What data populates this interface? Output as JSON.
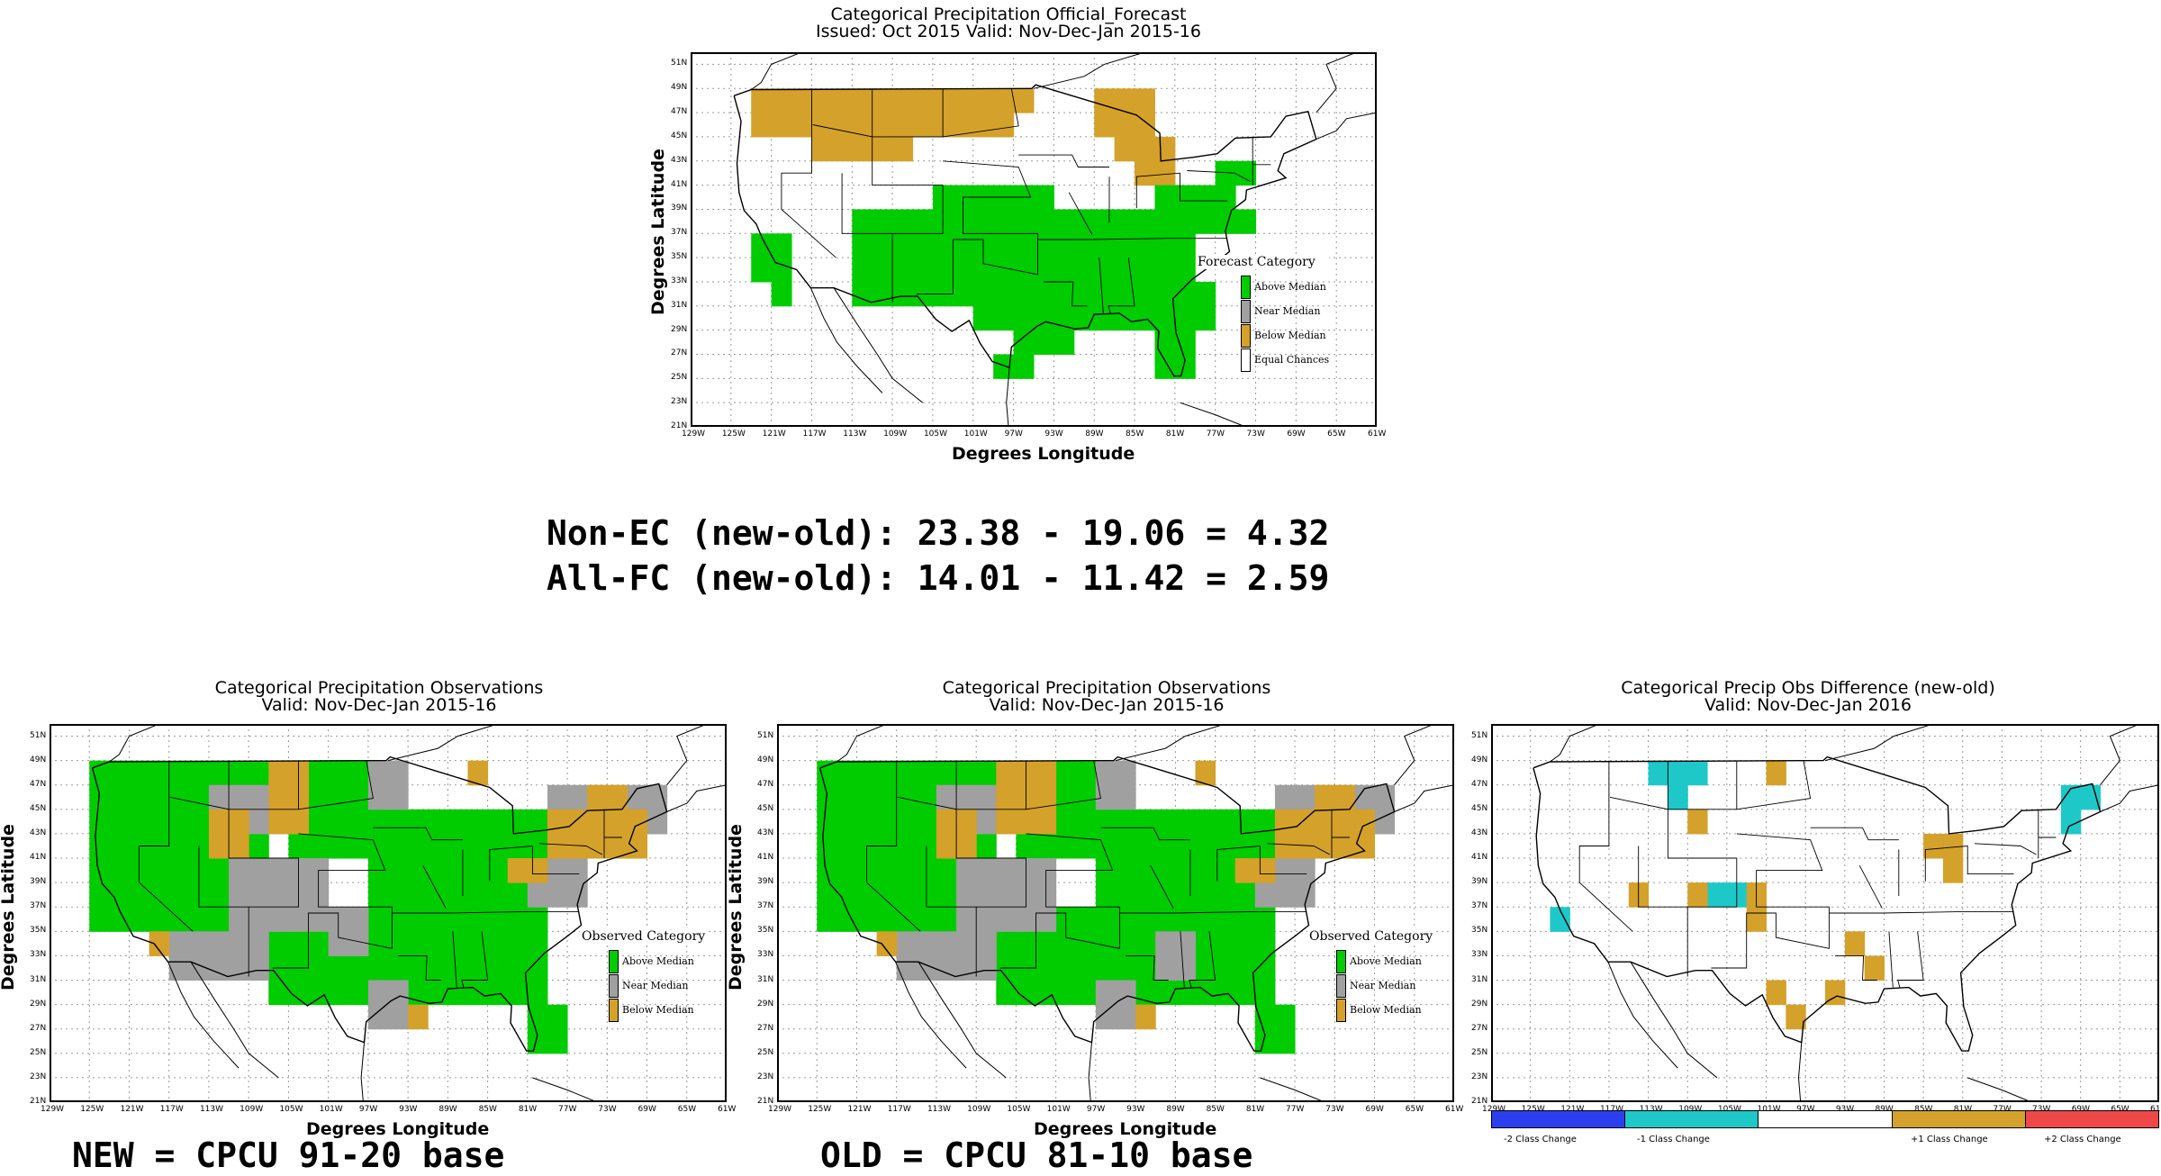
{
  "top_map": {
    "title_line1": "Categorical Precipitation Official_Forecast",
    "title_line2": "Issued: Oct 2015 Valid: Nov-Dec-Jan 2015-16",
    "legend": {
      "title": "Forecast Category",
      "items": [
        {
          "label": "Above Median",
          "color": "#00cc00"
        },
        {
          "label": "Near Median",
          "color": "#a0a0a0"
        },
        {
          "label": "Below Median",
          "color": "#d4a12a"
        },
        {
          "label": "Equal Chances",
          "color": "#ffffff"
        }
      ]
    },
    "ylabel": "Degrees Latitude",
    "xlabel": "Degrees Longitude"
  },
  "scores": {
    "non_ec": "Non-EC (new-old): 23.38 - 19.06 = 4.32",
    "all_fc": "All-FC (new-old): 14.01 - 11.42 = 2.59"
  },
  "map_new": {
    "title_line1": "Categorical Precipitation Observations",
    "title_line2": "Valid: Nov-Dec-Jan 2015-16",
    "legend": {
      "title": "Observed Category",
      "items": [
        {
          "label": "Above Median",
          "color": "#00cc00"
        },
        {
          "label": "Near Median",
          "color": "#a0a0a0"
        },
        {
          "label": "Below Median",
          "color": "#d4a12a"
        }
      ]
    },
    "ylabel": "Degrees Latitude",
    "xlabel": "Degrees Longitude",
    "caption": "NEW = CPCU 91-20 base"
  },
  "map_old": {
    "title_line1": "Categorical Precipitation Observations",
    "title_line2": "Valid: Nov-Dec-Jan 2015-16",
    "legend": {
      "title": "Observed Category",
      "items": [
        {
          "label": "Above Median",
          "color": "#00cc00"
        },
        {
          "label": "Near Median",
          "color": "#a0a0a0"
        },
        {
          "label": "Below Median",
          "color": "#d4a12a"
        }
      ]
    },
    "ylabel": "Degrees Latitude",
    "xlabel": "Degrees Longitude",
    "caption": "OLD = CPCU 81-10 base"
  },
  "map_diff": {
    "title_line1": "Categorical Precip Obs Difference (new-old)",
    "title_line2": "Valid: Nov-Dec-Jan 2016",
    "colorbar": [
      {
        "label": "-2 Class Change",
        "color": "#2b3ff0"
      },
      {
        "label": "-1 Class Change",
        "color": "#1ec8c8"
      },
      {
        "label": "",
        "color": "#ffffff"
      },
      {
        "label": "+1 Class Change",
        "color": "#d4a12a"
      },
      {
        "label": "+2 Class Change",
        "color": "#f04848"
      }
    ]
  },
  "lat_ticks": [
    "51N",
    "49N",
    "47N",
    "45N",
    "43N",
    "41N",
    "39N",
    "37N",
    "35N",
    "33N",
    "31N",
    "29N",
    "27N",
    "25N",
    "23N",
    "21N"
  ],
  "lon_ticks": [
    "129W",
    "125W",
    "121W",
    "117W",
    "113W",
    "109W",
    "105W",
    "101W",
    "97W",
    "93W",
    "89W",
    "85W",
    "81W",
    "77W",
    "73W",
    "69W",
    "65W",
    "61W"
  ],
  "colors": {
    "above": "#00cc00",
    "near": "#a0a0a0",
    "below": "#d4a12a",
    "minus1": "#1ec8c8"
  }
}
